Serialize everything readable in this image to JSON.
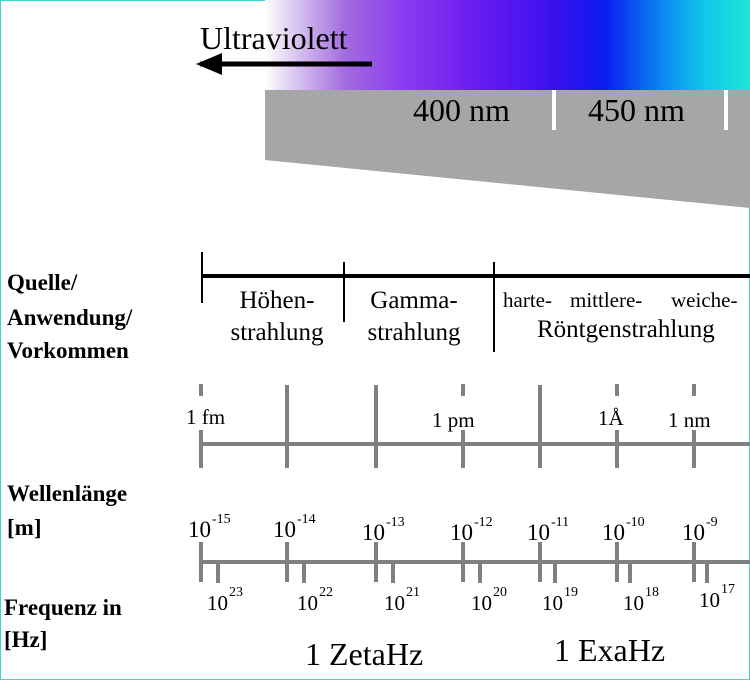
{
  "band": {
    "ultraviolet_label": "Ultraviolett",
    "nm_400": "400 nm",
    "nm_450": "450 nm"
  },
  "rows": {
    "source_label_1": "Quelle/",
    "source_label_2": "Anwendung/",
    "source_label_3": "Vorkommen",
    "wavelength_label_1": "Wellenlänge",
    "wavelength_label_2": "[m]",
    "frequency_label_1": "Frequenz in",
    "frequency_label_2": "[Hz]"
  },
  "sources": {
    "cosmic_1": "Höhen-",
    "cosmic_2": "strahlung",
    "gamma_1": "Gamma-",
    "gamma_2": "strahlung",
    "xray_hard": "harte-",
    "xray_medium": "mittlere-",
    "xray_soft": "weiche-",
    "xray_2": "Röntgenstrahlung"
  },
  "wavelength_units": {
    "fm": "1 fm",
    "pm": "1 pm",
    "angstrom": "1Å",
    "nm": "1 nm"
  },
  "wavelength_powers": [
    {
      "base": "10",
      "exp": "-15"
    },
    {
      "base": "10",
      "exp": "-14"
    },
    {
      "base": "10",
      "exp": "-13"
    },
    {
      "base": "10",
      "exp": "-12"
    },
    {
      "base": "10",
      "exp": "-11"
    },
    {
      "base": "10",
      "exp": "-10"
    },
    {
      "base": "10",
      "exp": "-9"
    }
  ],
  "frequency_powers": [
    {
      "base": "10",
      "exp": "23"
    },
    {
      "base": "10",
      "exp": "22"
    },
    {
      "base": "10",
      "exp": "21"
    },
    {
      "base": "10",
      "exp": "20"
    },
    {
      "base": "10",
      "exp": "19"
    },
    {
      "base": "10",
      "exp": "18"
    },
    {
      "base": "10",
      "exp": "17"
    }
  ],
  "frequency_units": {
    "zetta": "1 ZetaHz",
    "exa": "1 ExaHz"
  },
  "colors": {
    "scale_gray": "#808080",
    "wedge_gray": "#a6a6a6",
    "frame": "#3fd6d0"
  }
}
